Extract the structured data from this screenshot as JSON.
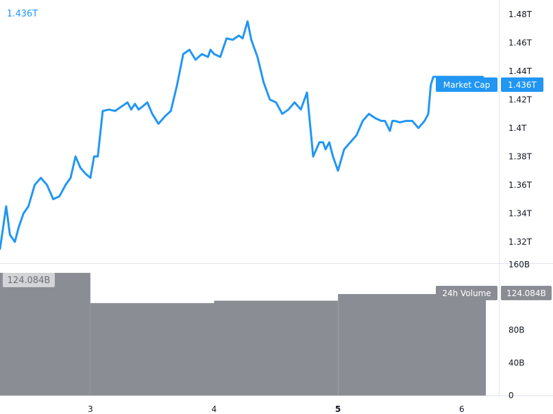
{
  "header": {
    "current_value": "1.436T"
  },
  "colors": {
    "line": "#2196f3",
    "volume": "#8a8d94",
    "volume_label": "#d3d4d7"
  },
  "chart_data": [
    {
      "type": "line",
      "name": "Market Cap",
      "badge_value": "1.436T",
      "ylim": [
        1.305,
        1.49
      ],
      "yticks": [
        {
          "value": 1.48,
          "label": "1.48T"
        },
        {
          "value": 1.46,
          "label": "1.46T"
        },
        {
          "value": 1.44,
          "label": "1.44T"
        },
        {
          "value": 1.42,
          "label": "1.42T"
        },
        {
          "value": 1.4,
          "label": "1.4T"
        },
        {
          "value": 1.38,
          "label": "1.38T"
        },
        {
          "value": 1.36,
          "label": "1.36T"
        },
        {
          "value": 1.34,
          "label": "1.34T"
        },
        {
          "value": 1.32,
          "label": "1.32T"
        }
      ],
      "xlim": [
        2.27,
        6.3
      ],
      "x": [
        2.27,
        2.32,
        2.35,
        2.39,
        2.42,
        2.46,
        2.5,
        2.55,
        2.6,
        2.65,
        2.7,
        2.75,
        2.8,
        2.84,
        2.88,
        2.92,
        2.96,
        3.0,
        3.03,
        3.06,
        3.1,
        3.15,
        3.2,
        3.25,
        3.3,
        3.33,
        3.36,
        3.39,
        3.42,
        3.46,
        3.5,
        3.55,
        3.6,
        3.65,
        3.7,
        3.75,
        3.8,
        3.85,
        3.9,
        3.95,
        3.97,
        4.0,
        4.05,
        4.1,
        4.15,
        4.2,
        4.23,
        4.27,
        4.3,
        4.35,
        4.4,
        4.45,
        4.5,
        4.55,
        4.6,
        4.65,
        4.7,
        4.75,
        4.8,
        4.85,
        4.88,
        4.9,
        4.93,
        4.96,
        5.0,
        5.05,
        5.1,
        5.15,
        5.2,
        5.25,
        5.3,
        5.35,
        5.38,
        5.42,
        5.44,
        5.46,
        5.5,
        5.55,
        5.6,
        5.65,
        5.7,
        5.73,
        5.75,
        5.77,
        5.8,
        5.85,
        5.9,
        5.95,
        6.0,
        6.05,
        6.1,
        6.15,
        6.17
      ],
      "y": [
        1.315,
        1.345,
        1.325,
        1.32,
        1.33,
        1.34,
        1.345,
        1.36,
        1.365,
        1.36,
        1.35,
        1.352,
        1.36,
        1.365,
        1.38,
        1.372,
        1.368,
        1.365,
        1.38,
        1.38,
        1.412,
        1.413,
        1.412,
        1.415,
        1.418,
        1.413,
        1.417,
        1.413,
        1.415,
        1.418,
        1.41,
        1.403,
        1.408,
        1.412,
        1.43,
        1.452,
        1.455,
        1.448,
        1.452,
        1.45,
        1.455,
        1.452,
        1.45,
        1.463,
        1.462,
        1.465,
        1.463,
        1.475,
        1.462,
        1.45,
        1.432,
        1.42,
        1.418,
        1.41,
        1.413,
        1.418,
        1.413,
        1.425,
        1.38,
        1.39,
        1.39,
        1.385,
        1.39,
        1.38,
        1.37,
        1.385,
        1.39,
        1.395,
        1.405,
        1.41,
        1.407,
        1.405,
        1.405,
        1.398,
        1.405,
        1.405,
        1.404,
        1.405,
        1.405,
        1.4,
        1.405,
        1.41,
        1.43,
        1.436,
        1.436,
        1.436,
        1.436,
        1.436,
        1.436,
        1.436,
        1.436,
        1.436,
        1.436
      ]
    },
    {
      "type": "bar",
      "name": "24h Volume",
      "badge_value": "124.084B",
      "corner_label": "124.084B",
      "ylim": [
        0,
        161
      ],
      "yticks": [
        {
          "value": 160,
          "label": "160B"
        },
        {
          "value": 80,
          "label": "80B"
        },
        {
          "value": 40,
          "label": "40B"
        },
        {
          "value": 0,
          "label": "0"
        }
      ],
      "bars": [
        {
          "x0": 2.27,
          "x1": 3.0,
          "value": 150
        },
        {
          "x0": 3.0,
          "x1": 4.0,
          "value": 113
        },
        {
          "x0": 4.0,
          "x1": 5.0,
          "value": 116
        },
        {
          "x0": 5.0,
          "x1": 6.2,
          "value": 124.084
        }
      ]
    }
  ],
  "xaxis": {
    "ticks": [
      {
        "value": 3,
        "label": "3"
      },
      {
        "value": 4,
        "label": "4"
      },
      {
        "value": 5,
        "label": "5"
      },
      {
        "value": 6,
        "label": "6"
      }
    ]
  }
}
